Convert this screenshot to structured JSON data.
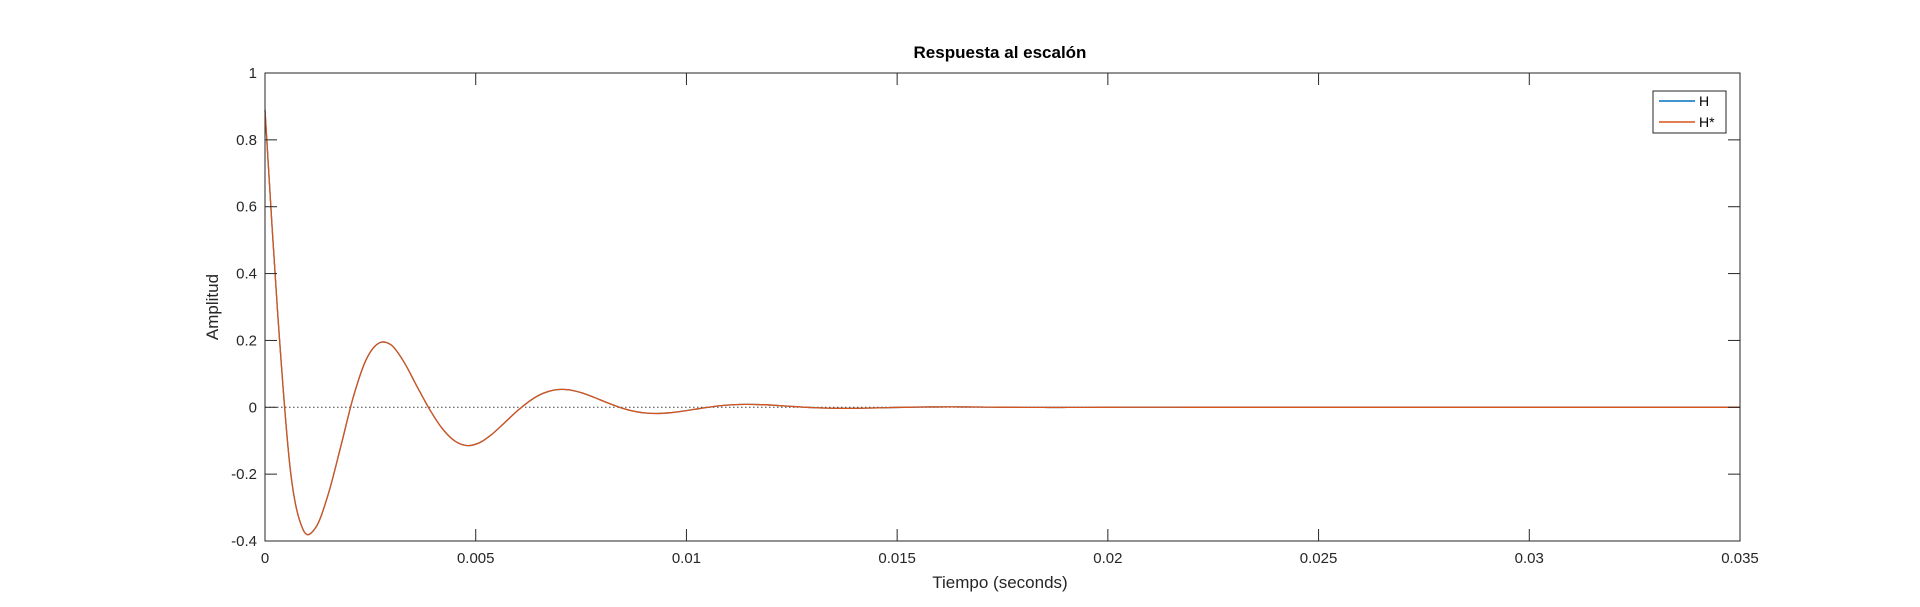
{
  "chart_data": {
    "type": "line",
    "title": "Respuesta al escalón",
    "xlabel": "Tiempo (seconds)",
    "ylabel": "Amplitud",
    "xlim": [
      0,
      0.035
    ],
    "ylim": [
      -0.4,
      1
    ],
    "xticks": [
      0,
      0.005,
      0.01,
      0.015,
      0.02,
      0.025,
      0.03,
      0.035
    ],
    "xtick_labels": [
      "0",
      "0.005",
      "0.01",
      "0.015",
      "0.02",
      "0.025",
      "0.03",
      "0.035"
    ],
    "yticks": [
      -0.4,
      -0.2,
      0,
      0.2,
      0.4,
      0.6,
      0.8,
      1
    ],
    "ytick_labels": [
      "-0.4",
      "-0.2",
      "0",
      "0.2",
      "0.4",
      "0.6",
      "0.8",
      "1"
    ],
    "grid": false,
    "legend_position": "top-right",
    "reference_line": {
      "y": 0,
      "style": "dotted"
    },
    "x": [
      0,
      0.0003,
      0.0006,
      0.0009,
      0.0012,
      0.0015,
      0.0018,
      0.0021,
      0.0024,
      0.0027,
      0.003,
      0.0033,
      0.0036,
      0.0039,
      0.0042,
      0.0045,
      0.0048,
      0.0051,
      0.0054,
      0.0057,
      0.006,
      0.0063,
      0.0066,
      0.0069,
      0.0072,
      0.0075,
      0.0078,
      0.0081,
      0.0084,
      0.0087,
      0.009,
      0.0093,
      0.0096,
      0.0099,
      0.0102,
      0.0105,
      0.0108,
      0.0111,
      0.0114,
      0.0117,
      0.012,
      0.0123,
      0.0126,
      0.0129,
      0.0132,
      0.0135,
      0.0138,
      0.0141,
      0.0144,
      0.0147,
      0.015,
      0.0153,
      0.0156,
      0.0159,
      0.0162,
      0.0165,
      0.0168,
      0.0171,
      0.0174,
      0.0177,
      0.018,
      0.0183,
      0.0186,
      0.0189,
      0.0192,
      0.0195,
      0.0198,
      0.0201,
      0.0204,
      0.0207,
      0.021,
      0.0213,
      0.0216,
      0.0219,
      0.0222,
      0.0225,
      0.0228,
      0.0231,
      0.0234,
      0.0237,
      0.024,
      0.0243,
      0.0246,
      0.0249,
      0.0252,
      0.0255,
      0.0258,
      0.0261,
      0.0264,
      0.0267,
      0.027,
      0.0273,
      0.0276,
      0.0279,
      0.0282,
      0.0285,
      0.0288,
      0.0291,
      0.0294,
      0.0297,
      0.03,
      0.0303,
      0.0306,
      0.0309,
      0.0312,
      0.0315,
      0.0318,
      0.0321,
      0.0324,
      0.0327,
      0.033,
      0.0333,
      0.0336,
      0.0339,
      0.0342,
      0.0345,
      0.0348,
      0.035
    ],
    "series": [
      {
        "name": "H",
        "color": "#0072BD",
        "values": [
          0.8889,
          0.2828,
          -0.1858,
          -0.3652,
          -0.3604,
          -0.2604,
          -0.1163,
          0.0327,
          0.1424,
          0.1918,
          0.1859,
          0.135,
          0.064,
          -0.005,
          -0.0626,
          -0.1005,
          -0.1146,
          -0.1054,
          -0.0791,
          -0.0444,
          -0.0094,
          0.0206,
          0.0419,
          0.0525,
          0.0525,
          0.0439,
          0.0302,
          0.0147,
          0.0006,
          -0.0103,
          -0.0168,
          -0.0186,
          -0.0166,
          -0.0119,
          -0.006,
          -0.0002,
          0.0045,
          0.0075,
          0.0087,
          0.0082,
          0.0066,
          0.0042,
          0.0018,
          -0.0004,
          -0.002,
          -0.0029,
          -0.0032,
          -0.0029,
          -0.0022,
          -0.0013,
          -0.0005,
          0.0003,
          0.0008,
          0.0011,
          0.0012,
          0.0011,
          0.0009,
          0.0006,
          0.0003,
          0.0,
          -0.0002,
          -0.0003,
          -0.0004,
          -0.0004,
          -0.0003,
          -0.0002,
          -0.0001,
          0.0,
          0.0001,
          0.0001,
          0.0001,
          0.0001,
          0.0001,
          0.0,
          0.0,
          0.0,
          0.0,
          0.0,
          0.0,
          0.0,
          0.0,
          0.0,
          0.0,
          0.0,
          0.0,
          0.0,
          0.0,
          0.0,
          0.0,
          0.0,
          0.0,
          0.0,
          0.0,
          0.0,
          0.0,
          0.0,
          0.0,
          0.0,
          0.0,
          0.0,
          0.0,
          0.0,
          0.0,
          0.0,
          0.0,
          0.0,
          0.0,
          0.0,
          0.0,
          0.0,
          0.0,
          0.0,
          0.0,
          0.0,
          0.0,
          0.0,
          0.0,
          0.0
        ]
      },
      {
        "name": "H*",
        "color": "#D95319",
        "values": [
          0.8889,
          0.2828,
          -0.1858,
          -0.3652,
          -0.3604,
          -0.2604,
          -0.1163,
          0.0327,
          0.1424,
          0.1918,
          0.1859,
          0.135,
          0.064,
          -0.005,
          -0.0626,
          -0.1005,
          -0.1146,
          -0.1054,
          -0.0791,
          -0.0444,
          -0.0094,
          0.0206,
          0.0419,
          0.0525,
          0.0525,
          0.0439,
          0.0302,
          0.0147,
          0.0006,
          -0.0103,
          -0.0168,
          -0.0186,
          -0.0166,
          -0.0119,
          -0.006,
          -0.0002,
          0.0045,
          0.0075,
          0.0087,
          0.0082,
          0.0066,
          0.0042,
          0.0018,
          -0.0004,
          -0.002,
          -0.0029,
          -0.0032,
          -0.0029,
          -0.0022,
          -0.0013,
          -0.0005,
          0.0003,
          0.0008,
          0.0011,
          0.0012,
          0.0011,
          0.0009,
          0.0006,
          0.0003,
          0.0,
          -0.0002,
          -0.0003,
          -0.0004,
          -0.0004,
          -0.0003,
          -0.0002,
          -0.0001,
          0.0,
          0.0001,
          0.0001,
          0.0001,
          0.0001,
          0.0001,
          0.0,
          0.0,
          0.0,
          0.0,
          0.0,
          0.0,
          0.0,
          0.0,
          0.0,
          0.0,
          0.0,
          0.0,
          0.0,
          0.0,
          0.0,
          0.0,
          0.0,
          0.0,
          0.0,
          0.0,
          0.0,
          0.0,
          0.0,
          0.0,
          0.0,
          0.0,
          0.0,
          0.0,
          0.0,
          0.0,
          0.0,
          0.0,
          0.0,
          0.0,
          0.0,
          0.0,
          0.0,
          0.0,
          0.0,
          0.0,
          0.0,
          0.0,
          0.0,
          0.0,
          0.0
        ]
      }
    ]
  }
}
